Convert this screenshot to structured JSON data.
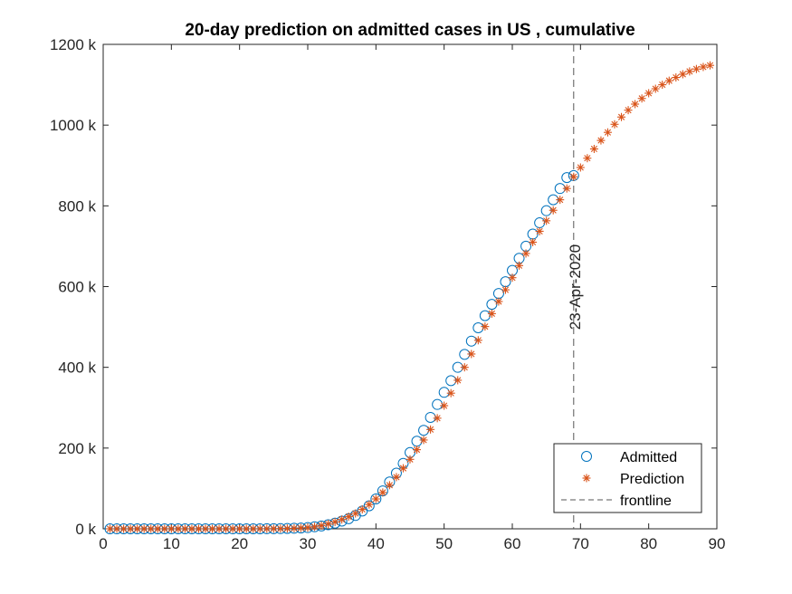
{
  "chart_data": {
    "type": "scatter",
    "title": "20-day prediction on admitted cases in US , cumulative",
    "xlabel": "",
    "ylabel": "",
    "xlim": [
      0,
      90
    ],
    "ylim": [
      0,
      1200
    ],
    "y_unit_suffix": " k",
    "x_ticks": [
      0,
      10,
      20,
      30,
      40,
      50,
      60,
      70,
      80,
      90
    ],
    "y_ticks": [
      0,
      200,
      400,
      600,
      800,
      1000,
      1200
    ],
    "y_tick_labels": [
      "0 k",
      "200 k",
      "400 k",
      "600 k",
      "800 k",
      "1000 k",
      "1200 k"
    ],
    "grid": false,
    "legend_position": "bottom-right",
    "colors": {
      "admitted": "#0072BD",
      "prediction": "#D95319",
      "frontline": "#555555",
      "axis": "#262626"
    },
    "series": [
      {
        "name": "Admitted",
        "marker": "circle",
        "x": [
          1,
          2,
          3,
          4,
          5,
          6,
          7,
          8,
          9,
          10,
          11,
          12,
          13,
          14,
          15,
          16,
          17,
          18,
          19,
          20,
          21,
          22,
          23,
          24,
          25,
          26,
          27,
          28,
          29,
          30,
          31,
          32,
          33,
          34,
          35,
          36,
          37,
          38,
          39,
          40,
          41,
          42,
          43,
          44,
          45,
          46,
          47,
          48,
          49,
          50,
          51,
          52,
          53,
          54,
          55,
          56,
          57,
          58,
          59,
          60,
          61,
          62,
          63,
          64,
          65,
          66,
          67,
          68,
          69
        ],
        "values": [
          0,
          0,
          0,
          0,
          0,
          0,
          0,
          0,
          0,
          0,
          0,
          0,
          0,
          0,
          0,
          0,
          0,
          0,
          0,
          0,
          0,
          0,
          0.1,
          0.2,
          0.3,
          0.5,
          0.8,
          1.3,
          2,
          3,
          5,
          7,
          10,
          14,
          19,
          25,
          33,
          44,
          57,
          74,
          94,
          116,
          138,
          162,
          189,
          217,
          244,
          276,
          308,
          338,
          367,
          400,
          432,
          465,
          498,
          528,
          556,
          583,
          612,
          640,
          670,
          700,
          730,
          758,
          788,
          815,
          843,
          870,
          875
        ],
        "note_last_point_matches_frontline": true
      },
      {
        "name": "Prediction",
        "marker": "asterisk",
        "x": [
          1,
          2,
          3,
          4,
          5,
          6,
          7,
          8,
          9,
          10,
          11,
          12,
          13,
          14,
          15,
          16,
          17,
          18,
          19,
          20,
          21,
          22,
          23,
          24,
          25,
          26,
          27,
          28,
          29,
          30,
          31,
          32,
          33,
          34,
          35,
          36,
          37,
          38,
          39,
          40,
          41,
          42,
          43,
          44,
          45,
          46,
          47,
          48,
          49,
          50,
          51,
          52,
          53,
          54,
          55,
          56,
          57,
          58,
          59,
          60,
          61,
          62,
          63,
          64,
          65,
          66,
          67,
          68,
          69,
          70,
          71,
          72,
          73,
          74,
          75,
          76,
          77,
          78,
          79,
          80,
          81,
          82,
          83,
          84,
          85,
          86,
          87,
          88,
          89
        ],
        "values": [
          0,
          0,
          0,
          0,
          0,
          0,
          0,
          0,
          0,
          0,
          0,
          0,
          0,
          0,
          0,
          0,
          0,
          0,
          0,
          0,
          0,
          0,
          0.1,
          0.2,
          0.3,
          0.5,
          0.8,
          1.3,
          2,
          3,
          5,
          8,
          12,
          17,
          23,
          30,
          38,
          48,
          60,
          74,
          90,
          108,
          128,
          150,
          172,
          196,
          220,
          246,
          274,
          305,
          336,
          368,
          400,
          433,
          467,
          501,
          533,
          563,
          592,
          622,
          652,
          682,
          710,
          737,
          763,
          789,
          815,
          843,
          872,
          895,
          918,
          941,
          962,
          982,
          1002,
          1020,
          1037,
          1052,
          1066,
          1079,
          1090,
          1100,
          1110,
          1118,
          1126,
          1133,
          1139,
          1144,
          1148
        ]
      }
    ],
    "vertical_line": {
      "name": "frontline",
      "x": 69,
      "label": "23-Apr-2020",
      "style": "dashed"
    },
    "legend": {
      "entries": [
        "Admitted",
        "Prediction",
        "frontline"
      ]
    }
  }
}
